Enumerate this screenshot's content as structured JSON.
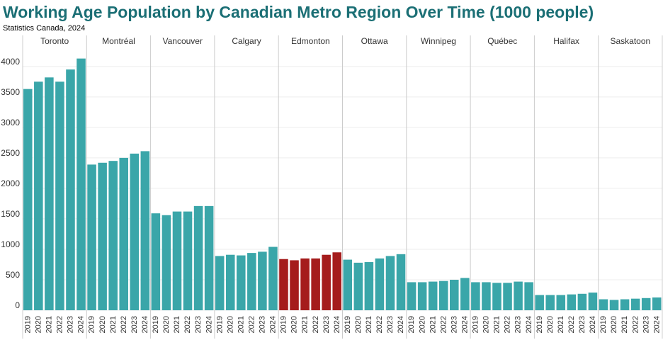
{
  "chart_data": {
    "type": "bar",
    "title": "Working Age Population by Canadian Metro Region Over Time (1000 people)",
    "subtitle": "Statistics Canada, 2024",
    "categories": [
      "2019",
      "2020",
      "2021",
      "2022",
      "2023",
      "2024"
    ],
    "series": [
      {
        "name": "Toronto",
        "color": "#3aa6a9",
        "values": [
          3630,
          3750,
          3820,
          3750,
          3950,
          4130
        ]
      },
      {
        "name": "Montréal",
        "color": "#3aa6a9",
        "values": [
          2390,
          2420,
          2450,
          2500,
          2570,
          2610
        ]
      },
      {
        "name": "Vancouver",
        "color": "#3aa6a9",
        "values": [
          1590,
          1560,
          1620,
          1620,
          1710,
          1710
        ]
      },
      {
        "name": "Calgary",
        "color": "#3aa6a9",
        "values": [
          890,
          910,
          900,
          940,
          960,
          1040
        ]
      },
      {
        "name": "Edmonton",
        "color": "#a51c1c",
        "values": [
          840,
          820,
          850,
          850,
          910,
          950
        ]
      },
      {
        "name": "Ottawa",
        "color": "#3aa6a9",
        "values": [
          830,
          780,
          790,
          850,
          890,
          920
        ]
      },
      {
        "name": "Winnipeg",
        "color": "#3aa6a9",
        "values": [
          460,
          460,
          470,
          480,
          500,
          530
        ]
      },
      {
        "name": "Québec",
        "color": "#3aa6a9",
        "values": [
          460,
          460,
          450,
          450,
          470,
          460
        ]
      },
      {
        "name": "Halifax",
        "color": "#3aa6a9",
        "values": [
          250,
          250,
          250,
          260,
          270,
          290
        ]
      },
      {
        "name": "Saskatoon",
        "color": "#3aa6a9",
        "values": [
          180,
          170,
          180,
          190,
          200,
          210
        ]
      }
    ],
    "ylim": [
      0,
      4300
    ],
    "yticks": [
      0,
      500,
      1000,
      1500,
      2000,
      2500,
      3000,
      3500,
      4000
    ],
    "grid": true
  }
}
